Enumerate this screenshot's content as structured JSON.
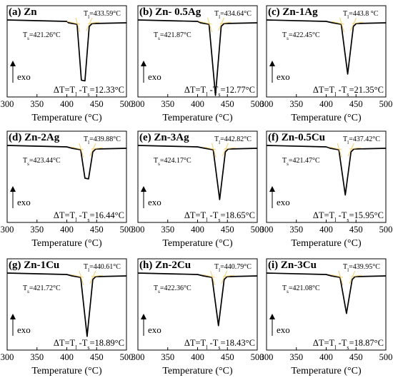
{
  "chart_data": [
    {
      "type": "line",
      "title": "(a) Zn",
      "tl": "433.59°C",
      "ts": "421.26°C",
      "dt": "ΔT=T",
      "dt_mid": "-T",
      "dt_value": "=12.33°C",
      "x_ticks": [
        "300",
        "350",
        "400",
        "450",
        "500"
      ],
      "xlabel": "Temperature (°C)",
      "xlim": [
        300,
        500
      ],
      "exo": "exo",
      "peak_temp": 428,
      "peak_depth": 0.78,
      "flat_bottom": true
    },
    {
      "type": "line",
      "title": "(b) Zn- 0.5Ag",
      "tl": "434.64°C",
      "ts": "421.87°C",
      "dt": "ΔT=T",
      "dt_mid": "-T",
      "dt_value": "=12.77°C",
      "x_ticks": [
        "300",
        "350",
        "400",
        "450",
        "500"
      ],
      "xlabel": "Temperature (°C)",
      "xlim": [
        300,
        500
      ],
      "exo": "exo",
      "peak_temp": 430,
      "peak_depth": 0.98,
      "flat_bottom": false
    },
    {
      "type": "line",
      "title": "(c) Zn-1Ag",
      "tl": "443.8 °C",
      "ts": "422.45°C",
      "dt": "ΔT=T",
      "dt_mid": "-T",
      "dt_value": "=21.35°C",
      "x_ticks": [
        "300",
        "350",
        "400",
        "450",
        "500"
      ],
      "xlabel": "Temperature (°C)",
      "xlim": [
        300,
        500
      ],
      "exo": "exo",
      "peak_temp": 436,
      "peak_depth": 0.7,
      "flat_bottom": false
    },
    {
      "type": "line",
      "title": "(d) Zn-2Ag",
      "tl": "439.88°C",
      "ts": "423.44°C",
      "dt": "ΔT=T",
      "dt_mid": "-T",
      "dt_value": "=16.44°C",
      "x_ticks": [
        "300",
        "350",
        "400",
        "450",
        "500"
      ],
      "xlabel": "Temperature (°C)",
      "xlim": [
        300,
        500
      ],
      "exo": "exo",
      "peak_temp": 434,
      "peak_depth": 0.42,
      "flat_bottom": true
    },
    {
      "type": "line",
      "title": "(e) Zn-3Ag",
      "tl": "442.82°C",
      "ts": "424.17°C",
      "dt": "ΔT=T",
      "dt_mid": "-T",
      "dt_value": "=18.65°C",
      "x_ticks": [
        "300",
        "350",
        "400",
        "450",
        "500"
      ],
      "xlabel": "Temperature (°C)",
      "xlim": [
        300,
        500
      ],
      "exo": "exo",
      "peak_temp": 437,
      "peak_depth": 0.7,
      "flat_bottom": false
    },
    {
      "type": "line",
      "title": "(f) Zn-0.5Cu",
      "tl": "437.42°C",
      "ts": "421.47°C",
      "dt": "ΔT=T",
      "dt_mid": "-T",
      "dt_value": "=15.95°C",
      "x_ticks": [
        "300",
        "350",
        "400",
        "450",
        "500"
      ],
      "xlabel": "Temperature (°C)",
      "xlim": [
        300,
        500
      ],
      "exo": "exo",
      "peak_temp": 432,
      "peak_depth": 0.64,
      "flat_bottom": false
    },
    {
      "type": "line",
      "title": "(g) Zn-1Cu",
      "tl": "440.61°C",
      "ts": "421.72°C",
      "dt": "ΔT=T",
      "dt_mid": "-T",
      "dt_value": "=18.89°C",
      "x_ticks": [
        "300",
        "350",
        "400",
        "450",
        "500"
      ],
      "xlabel": "Temperature (°C)",
      "xlim": [
        300,
        500
      ],
      "exo": "exo",
      "peak_temp": 434,
      "peak_depth": 0.82,
      "flat_bottom": false
    },
    {
      "type": "line",
      "title": "(h) Zn-2Cu",
      "tl": "440.79°C",
      "ts": "422.36°C",
      "dt": "ΔT=T",
      "dt_mid": "-T",
      "dt_value": "=18.43°C",
      "x_ticks": [
        "300",
        "350",
        "400",
        "450",
        "500"
      ],
      "xlabel": "Temperature (°C)",
      "xlim": [
        300,
        500
      ],
      "exo": "exo",
      "peak_temp": 435,
      "peak_depth": 0.68,
      "flat_bottom": false
    },
    {
      "type": "line",
      "title": "(i) Zn-3Cu",
      "tl": "439.95°C",
      "ts": "421.08°C",
      "dt": "ΔT=T",
      "dt_mid": "-T",
      "dt_value": "=18.87°C",
      "x_ticks": [
        "300",
        "350",
        "400",
        "450",
        "500"
      ],
      "xlabel": "Temperature (°C)",
      "xlim": [
        300,
        500
      ],
      "exo": "exo",
      "peak_temp": 434,
      "peak_depth": 0.52,
      "flat_bottom": false
    }
  ],
  "colors": {
    "trace": "#000000",
    "tangent": "#f3d27a"
  }
}
